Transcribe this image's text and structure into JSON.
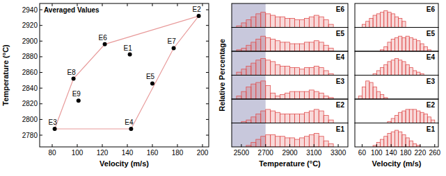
{
  "chart_data": [
    {
      "type": "scatter",
      "annotation": "Averaged Values",
      "xlabel": "Velocity (m/s)",
      "ylabel": "Temperature (°C)",
      "xlim": [
        70,
        205
      ],
      "ylim": [
        2765,
        2948
      ],
      "xticks": [
        80,
        100,
        120,
        140,
        160,
        180,
        200
      ],
      "yticks": [
        2780,
        2800,
        2820,
        2840,
        2860,
        2880,
        2900,
        2920,
        2940
      ],
      "series": [
        {
          "type": "scatter",
          "marker": "circle",
          "color": "#000000",
          "labels": [
            "E1",
            "E2",
            "E3",
            "E4",
            "E5",
            "E6",
            "E7",
            "E8",
            "E9"
          ],
          "x": [
            142,
            197,
            82,
            143,
            160,
            122,
            177,
            97,
            101
          ],
          "values": [
            2883,
            2932,
            2788,
            2788,
            2846,
            2896,
            2891,
            2852,
            2824
          ]
        },
        {
          "type": "line",
          "line_style": "solid",
          "color": "#e89a9a",
          "x": [
            82,
            97,
            122,
            197,
            177,
            143,
            82
          ],
          "values": [
            2788,
            2852,
            2896,
            2932,
            2891,
            2788,
            2788
          ]
        }
      ]
    },
    {
      "type": "histogram",
      "xlabel": "Temperature (°C)",
      "ylabel": "Relative Percentage",
      "xlim": [
        2420,
        3380
      ],
      "ylim": [
        0,
        14
      ],
      "xticks": [
        2500,
        2700,
        2900,
        3100,
        3300
      ],
      "yticks": [],
      "tick_labels": "x",
      "shaded_range": [
        2420,
        2700
      ],
      "color": "#e05050",
      "bins": [
        2460,
        2500,
        2540,
        2580,
        2620,
        2660,
        2700,
        2740,
        2780,
        2820,
        2860,
        2900,
        2940,
        2980,
        3020,
        3060,
        3100,
        3140,
        3180,
        3220,
        3260,
        3300
      ],
      "series": [
        {
          "name": "E6",
          "values": [
            1,
            3,
            5,
            7,
            9,
            10,
            9,
            8,
            7,
            7,
            6,
            6,
            5,
            5,
            6,
            7,
            8,
            7,
            5,
            2,
            0
          ]
        },
        {
          "name": "E5",
          "values": [
            1,
            2,
            4,
            6,
            8,
            10,
            9,
            8,
            7,
            6,
            6,
            5,
            5,
            5,
            6,
            6,
            7,
            6,
            4,
            2,
            0
          ]
        },
        {
          "name": "E4",
          "values": [
            2,
            4,
            6,
            8,
            10,
            11,
            10,
            9,
            7,
            6,
            6,
            5,
            5,
            4,
            5,
            5,
            6,
            5,
            3,
            1,
            0
          ]
        },
        {
          "name": "E3",
          "values": [
            2,
            5,
            8,
            10,
            11,
            12,
            9,
            4,
            2,
            3,
            4,
            5,
            5,
            5,
            5,
            6,
            5,
            4,
            2,
            1,
            0
          ]
        },
        {
          "name": "E2",
          "values": [
            0,
            1,
            2,
            4,
            6,
            8,
            9,
            8,
            7,
            6,
            6,
            6,
            6,
            6,
            7,
            8,
            9,
            8,
            5,
            2,
            0
          ]
        },
        {
          "name": "E1",
          "values": [
            0,
            0,
            1,
            3,
            5,
            7,
            8,
            8,
            7,
            7,
            6,
            6,
            5,
            6,
            7,
            8,
            9,
            7,
            4,
            2,
            0
          ]
        }
      ]
    },
    {
      "type": "histogram",
      "xlabel": "Velocity (m/s)",
      "xlim": [
        40,
        270
      ],
      "ylim": [
        0,
        14
      ],
      "xticks": [
        60,
        100,
        140,
        180,
        220,
        260
      ],
      "yticks": [],
      "tick_labels": "x",
      "color": "#e05050",
      "bins": [
        50,
        60,
        70,
        80,
        90,
        100,
        110,
        120,
        130,
        140,
        150,
        160,
        170,
        180,
        190,
        200,
        210,
        220,
        230,
        240,
        250,
        260
      ],
      "series": [
        {
          "name": "E6",
          "values": [
            0,
            2,
            4,
            6,
            8,
            9,
            10,
            11,
            10,
            9,
            7,
            6,
            4,
            0,
            0,
            0,
            0,
            0,
            0,
            0,
            0
          ]
        },
        {
          "name": "E5",
          "values": [
            0,
            0,
            0,
            0,
            0,
            0,
            1,
            3,
            6,
            8,
            9,
            10,
            9,
            10,
            9,
            8,
            7,
            5,
            3,
            1,
            0
          ]
        },
        {
          "name": "E4",
          "values": [
            0,
            0,
            0,
            0,
            1,
            3,
            5,
            7,
            9,
            10,
            11,
            10,
            9,
            7,
            5,
            3,
            2,
            1,
            0,
            0,
            0
          ]
        },
        {
          "name": "E3",
          "values": [
            2,
            8,
            12,
            11,
            8,
            5,
            3,
            1,
            0,
            0,
            0,
            0,
            0,
            0,
            0,
            0,
            0,
            0,
            0,
            0,
            0
          ]
        },
        {
          "name": "E2",
          "values": [
            0,
            0,
            0,
            0,
            0,
            0,
            0,
            0,
            1,
            3,
            5,
            7,
            8,
            9,
            9,
            9,
            8,
            7,
            6,
            4,
            2
          ]
        },
        {
          "name": "E1",
          "values": [
            0,
            0,
            0,
            0,
            1,
            3,
            5,
            7,
            9,
            10,
            11,
            10,
            8,
            6,
            4,
            2,
            1,
            0,
            0,
            0,
            0
          ]
        }
      ]
    }
  ]
}
